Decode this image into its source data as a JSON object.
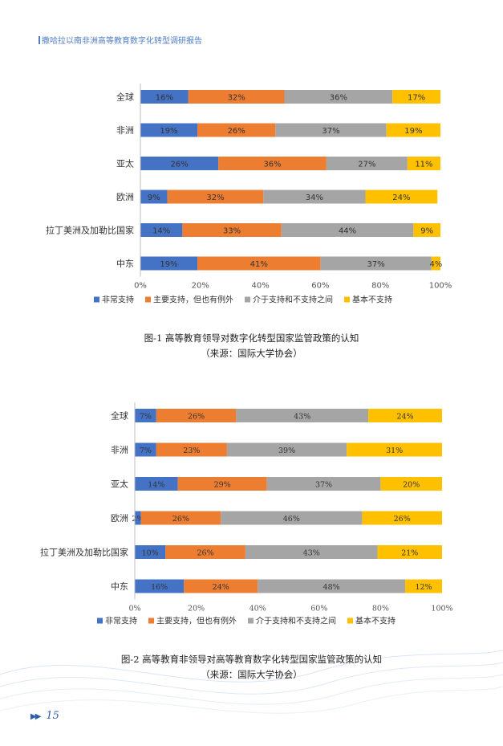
{
  "running_head": "撒哈拉以南非洲高等教育数字化转型调研报告",
  "page_number": "15",
  "colors": {
    "series": [
      "#4472c4",
      "#ed7d31",
      "#a5a5a5",
      "#ffc000"
    ],
    "footer": "#2f5fa8"
  },
  "chart_data": [
    {
      "type": "bar",
      "orientation": "horizontal",
      "stacked": "percent",
      "categories": [
        "全球",
        "非洲",
        "亚太",
        "欧洲",
        "拉丁美洲及加勒比国家",
        "中东"
      ],
      "series": [
        {
          "name": "非常支持",
          "values": [
            16,
            19,
            26,
            9,
            14,
            19
          ],
          "labels": [
            "16%",
            "19%",
            "26%",
            "9%",
            "14%",
            "19%"
          ]
        },
        {
          "name": "主要支持，但也有例外",
          "values": [
            32,
            26,
            36,
            32,
            33,
            41
          ],
          "labels": [
            "32%",
            "26%",
            "36%",
            "32%",
            "33%",
            "41%"
          ]
        },
        {
          "name": "介于支持和不支持之间",
          "values": [
            36,
            37,
            27,
            34,
            44,
            37
          ],
          "labels": [
            "36%",
            "37%",
            "27%",
            "34%",
            "44%",
            "37%"
          ]
        },
        {
          "name": "基本不支持",
          "values": [
            17,
            19,
            11,
            24,
            9,
            4
          ],
          "labels": [
            "17%",
            "19%",
            "11%",
            "24%",
            "9%",
            "4%"
          ]
        }
      ],
      "x_ticks": [
        "0%",
        "20%",
        "40%",
        "60%",
        "80%",
        "100%"
      ],
      "xlim": [
        0,
        100
      ],
      "legend": "bottom",
      "grid": false,
      "caption": "图-1  高等教育领导对数字化转型国家监管政策的认知",
      "source": "（来源：国际大学协会）"
    },
    {
      "type": "bar",
      "orientation": "horizontal",
      "stacked": "percent",
      "categories": [
        "全球",
        "非洲",
        "亚太",
        "欧洲",
        "拉丁美洲及加勒比国家",
        "中东"
      ],
      "series": [
        {
          "name": "非常支持",
          "values": [
            7,
            7,
            14,
            2,
            10,
            16
          ],
          "labels": [
            "7%",
            "7%",
            "14%",
            "2%",
            "10%",
            "16%"
          ]
        },
        {
          "name": "主要支持，但也有例外",
          "values": [
            26,
            23,
            29,
            26,
            26,
            24
          ],
          "labels": [
            "26%",
            "23%",
            "29%",
            "26%",
            "26%",
            "24%"
          ]
        },
        {
          "name": "介于支持和不支持之间",
          "values": [
            43,
            39,
            37,
            46,
            43,
            48
          ],
          "labels": [
            "43%",
            "39%",
            "37%",
            "46%",
            "43%",
            "48%"
          ]
        },
        {
          "name": "基本不支持",
          "values": [
            24,
            31,
            20,
            26,
            21,
            12
          ],
          "labels": [
            "24%",
            "31%",
            "20%",
            "26%",
            "21%",
            "12%"
          ]
        }
      ],
      "x_ticks": [
        "0%",
        "20%",
        "40%",
        "60%",
        "80%",
        "100%"
      ],
      "xlim": [
        0,
        100
      ],
      "legend": "bottom",
      "grid": false,
      "caption": "图-2  高等教育非领导对高等教育数字化转型国家监管政策的认知",
      "source": "（来源：国际大学协会）"
    }
  ]
}
